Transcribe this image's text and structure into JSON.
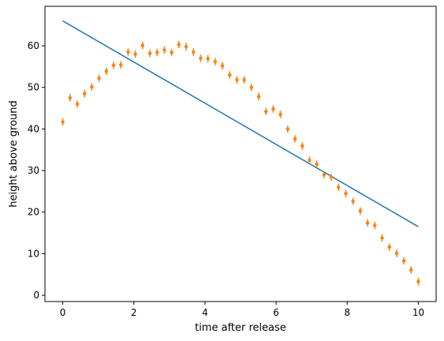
{
  "chart_data": {
    "type": "scatter",
    "xlabel": "time after release",
    "ylabel": "height above ground",
    "xlim": [
      -0.5,
      10.5
    ],
    "ylim": [
      -1.5,
      69.5
    ],
    "x_ticks": [
      0,
      2,
      4,
      6,
      8,
      10
    ],
    "y_ticks": [
      0,
      10,
      20,
      30,
      40,
      50,
      60
    ],
    "grid": false,
    "series": [
      {
        "type": "line",
        "color": "#1f77b4",
        "x": [
          0,
          10
        ],
        "y": [
          66,
          16.5
        ]
      },
      {
        "type": "errorbar",
        "color": "#ff7f0e",
        "marker": "circle",
        "error": 0.9,
        "x": [
          0.0,
          0.204,
          0.408,
          0.612,
          0.816,
          1.02,
          1.224,
          1.429,
          1.633,
          1.837,
          2.041,
          2.245,
          2.449,
          2.653,
          2.857,
          3.061,
          3.265,
          3.469,
          3.673,
          3.878,
          4.082,
          4.286,
          4.49,
          4.694,
          4.898,
          5.102,
          5.306,
          5.51,
          5.714,
          5.918,
          6.122,
          6.327,
          6.531,
          6.735,
          6.939,
          7.143,
          7.347,
          7.551,
          7.755,
          7.959,
          8.163,
          8.367,
          8.571,
          8.776,
          8.98,
          9.184,
          9.388,
          9.592,
          9.796,
          10.0
        ],
        "y": [
          41.7,
          47.5,
          46.0,
          48.5,
          50.1,
          52.2,
          53.9,
          55.3,
          55.4,
          58.5,
          58.0,
          60.1,
          58.2,
          58.4,
          59.0,
          58.4,
          60.3,
          59.8,
          58.5,
          57.0,
          56.9,
          56.2,
          55.2,
          53.0,
          51.8,
          51.8,
          50.0,
          47.8,
          44.2,
          44.8,
          43.5,
          40.0,
          37.6,
          35.9,
          32.5,
          31.5,
          29.0,
          28.4,
          26.0,
          24.5,
          22.6,
          20.3,
          17.4,
          16.8,
          13.8,
          11.6,
          10.1,
          8.3,
          6.1,
          3.3
        ]
      }
    ]
  }
}
